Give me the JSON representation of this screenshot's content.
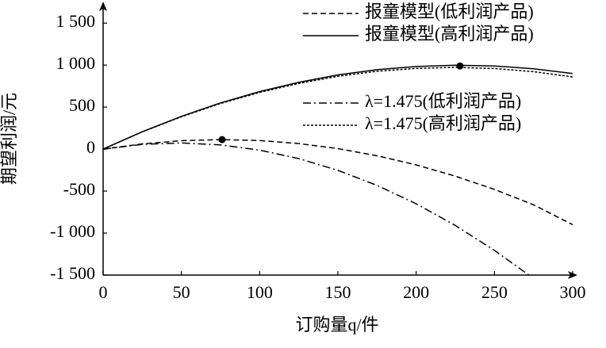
{
  "chart_data": {
    "type": "line",
    "xlabel": "订购量q/件",
    "ylabel": "期望利润/元",
    "xlim": [
      0,
      300
    ],
    "ylim": [
      -1500,
      1700
    ],
    "xticks": [
      0,
      50,
      100,
      150,
      200,
      250,
      300
    ],
    "yticks": [
      {
        "value": -1500,
        "label": "-1 500"
      },
      {
        "value": -1000,
        "label": "-1 000"
      },
      -500,
      0,
      500,
      {
        "value": 1000,
        "label": "1 000"
      },
      {
        "value": 1500,
        "label": "1 500"
      }
    ],
    "series": [
      {
        "name": "报童模型(低利润产品)",
        "color": "#000000",
        "style": "dashed",
        "x": [
          0,
          25,
          50,
          75,
          100,
          125,
          150,
          175,
          200,
          225,
          250,
          275,
          300
        ],
        "values": [
          0,
          62,
          100,
          113,
          102,
          66,
          6,
          -79,
          -188,
          -322,
          -480,
          -663,
          -900
        ]
      },
      {
        "name": "报童模型(高利润产品)",
        "color": "#000000",
        "style": "solid",
        "x": [
          0,
          25,
          50,
          75,
          100,
          125,
          150,
          175,
          200,
          225,
          250,
          275,
          300
        ],
        "values": [
          0,
          207,
          390,
          550,
          685,
          795,
          883,
          946,
          984,
          999,
          990,
          957,
          900
        ]
      },
      {
        "name": "λ=1.475(低利润产品)",
        "color": "#000000",
        "style": "dashdot",
        "x": [
          0,
          25,
          50,
          75,
          100,
          125,
          150,
          175,
          200,
          225,
          250,
          272
        ],
        "values": [
          0,
          56,
          73,
          50,
          -12,
          -113,
          -253,
          -432,
          -651,
          -909,
          -1206,
          -1500
        ]
      },
      {
        "name": "λ=1.475(高利润产品)",
        "color": "#000000",
        "style": "dotted",
        "x": [
          0,
          25,
          50,
          75,
          100,
          125,
          150,
          175,
          200,
          225,
          250,
          275,
          300
        ],
        "values": [
          0,
          205,
          385,
          543,
          675,
          782,
          867,
          927,
          961,
          973,
          960,
          922,
          860
        ]
      }
    ],
    "markers": {
      "x": [
        76,
        228
      ],
      "values": [
        113,
        990
      ]
    }
  }
}
